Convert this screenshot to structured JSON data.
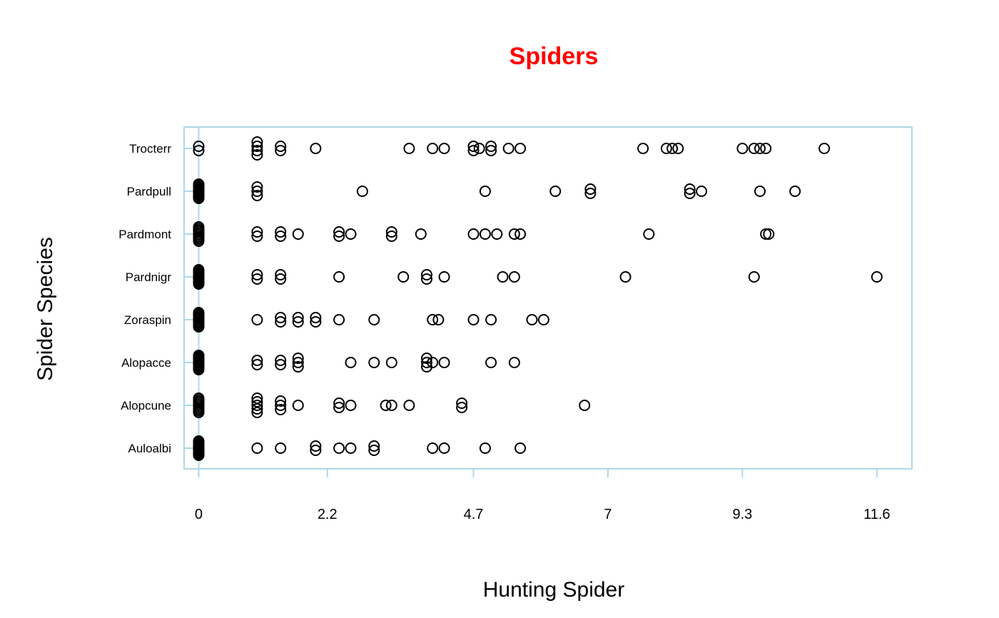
{
  "chart_data": {
    "type": "scatter",
    "subtype": "stripchart",
    "title": "Spiders",
    "xlabel": "Hunting Spider",
    "ylabel": "Spider Species",
    "xlim": [
      -0.25,
      12.2
    ],
    "x_ticks": [
      0,
      2.2,
      4.7,
      7,
      9.3,
      11.6
    ],
    "x_tick_labels": [
      "0",
      "2.2",
      "4.7",
      "7",
      "9.3",
      "11.6"
    ],
    "grid": false,
    "legend": "none",
    "colors": {
      "title": "#ff0000",
      "frame": "#add8e6",
      "points": "#000000"
    },
    "categories": [
      "Auloalbi",
      "Alopcune",
      "Alopacce",
      "Zoraspin",
      "Pardnigr",
      "Pardmont",
      "Pardpull",
      "Trocterr"
    ],
    "series": [
      {
        "category": "Auloalbi",
        "values": [
          0,
          0,
          0,
          0,
          0,
          0,
          0,
          0,
          0,
          0,
          0,
          0,
          0,
          0,
          0,
          1.0,
          1.4,
          2.0,
          2.0,
          2.4,
          2.6,
          3.0,
          3.0,
          4.0,
          4.2,
          4.9,
          5.5
        ]
      },
      {
        "category": "Alopcune",
        "values": [
          0,
          0,
          0,
          0,
          0,
          0,
          0,
          0,
          0,
          0,
          1.0,
          1.0,
          1.0,
          1.0,
          1.0,
          1.4,
          1.4,
          1.4,
          1.7,
          2.4,
          2.4,
          2.6,
          3.2,
          3.3,
          3.6,
          4.5,
          4.5,
          6.6
        ]
      },
      {
        "category": "Alopacce",
        "values": [
          0,
          0,
          0,
          0,
          0,
          0,
          0,
          0,
          0,
          0,
          0,
          0,
          1.0,
          1.0,
          1.4,
          1.4,
          1.7,
          1.7,
          1.7,
          2.6,
          3.0,
          3.3,
          3.9,
          3.9,
          3.9,
          4.0,
          4.2,
          5.0,
          5.4
        ]
      },
      {
        "category": "Zoraspin",
        "values": [
          0,
          0,
          0,
          0,
          0,
          0,
          0,
          0,
          0,
          0,
          0,
          1.0,
          1.4,
          1.4,
          1.7,
          1.7,
          2.0,
          2.0,
          2.4,
          3.0,
          4.0,
          4.1,
          4.7,
          5.0,
          5.7,
          5.9
        ]
      },
      {
        "category": "Pardnigr",
        "values": [
          0,
          0,
          0,
          0,
          0,
          0,
          0,
          0,
          0,
          0,
          0,
          0,
          1.0,
          1.0,
          1.4,
          1.4,
          2.4,
          3.5,
          3.9,
          3.9,
          4.2,
          5.2,
          5.4,
          7.3,
          9.5,
          11.6
        ]
      },
      {
        "category": "Pardmont",
        "values": [
          0,
          0,
          0,
          0,
          0,
          0,
          0,
          0,
          0,
          0,
          1.0,
          1.0,
          1.4,
          1.4,
          1.7,
          2.4,
          2.4,
          2.6,
          3.3,
          3.3,
          3.8,
          4.7,
          4.9,
          5.1,
          5.4,
          5.5,
          7.7,
          9.7,
          9.75
        ]
      },
      {
        "category": "Pardpull",
        "values": [
          0,
          0,
          0,
          0,
          0,
          0,
          0,
          0,
          0,
          0,
          0,
          0,
          0,
          0,
          1.0,
          1.0,
          1.0,
          2.8,
          4.9,
          6.1,
          6.7,
          6.7,
          8.4,
          8.4,
          8.6,
          9.6,
          10.2
        ]
      },
      {
        "category": "Trocterr",
        "values": [
          0,
          0,
          1.0,
          1.0,
          1.0,
          1.0,
          1.4,
          1.4,
          2.0,
          3.6,
          4.0,
          4.2,
          4.7,
          4.7,
          4.8,
          5.0,
          5.0,
          5.3,
          5.5,
          7.6,
          8.0,
          8.1,
          8.2,
          9.3,
          9.5,
          9.6,
          9.7,
          10.7
        ]
      }
    ]
  }
}
